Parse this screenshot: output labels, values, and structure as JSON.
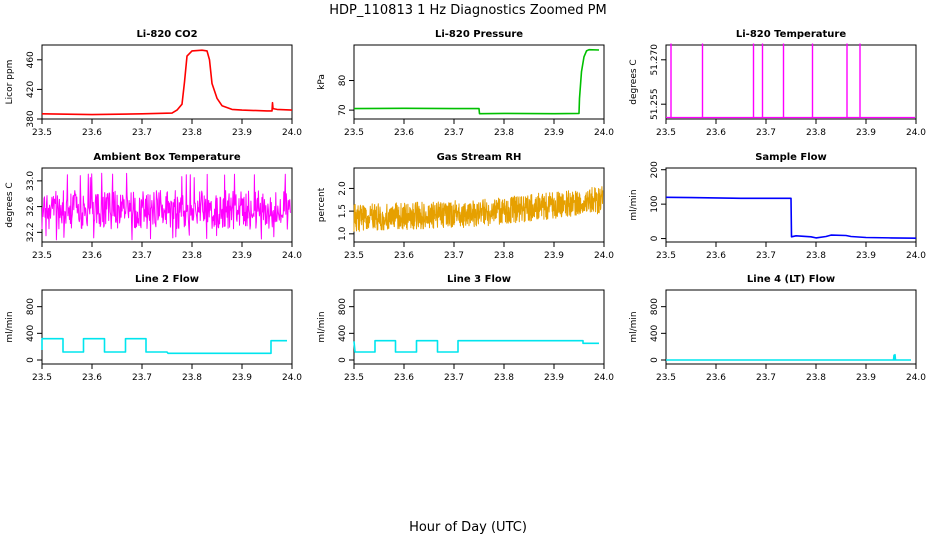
{
  "figure": {
    "title": "HDP_110813  1 Hz Diagnostics Zoomed PM",
    "xlabel": "Hour of Day (UTC)"
  },
  "chart_data": [
    {
      "type": "line",
      "title": "Li-820 CO2",
      "ylabel": "Licor ppm",
      "color": "#ff0000",
      "xlim": [
        23.5,
        24.0
      ],
      "ylim": [
        380,
        480
      ],
      "xticks": [
        "23.5",
        "23.6",
        "23.7",
        "23.8",
        "23.9",
        "24.0"
      ],
      "yticks": [
        "380",
        "420",
        "460"
      ],
      "series": [
        {
          "x": [
            23.5,
            23.6,
            23.7,
            23.76,
            23.77,
            23.78,
            23.785,
            23.79,
            23.8,
            23.82,
            23.83,
            23.835,
            23.84,
            23.85,
            23.86,
            23.88,
            23.9,
            23.95,
            23.96,
            23.961,
            23.962,
            23.97,
            24.0
          ],
          "y": [
            387,
            386,
            387,
            388,
            392,
            400,
            430,
            465,
            472,
            473,
            472,
            460,
            428,
            408,
            398,
            393,
            392,
            391,
            391,
            402,
            394,
            393,
            392
          ]
        }
      ]
    },
    {
      "type": "line",
      "title": "Li-820 Pressure",
      "ylabel": "kPa",
      "color": "#00c000",
      "xlim": [
        23.5,
        24.0
      ],
      "ylim": [
        67,
        92
      ],
      "xticks": [
        "23.5",
        "23.6",
        "23.7",
        "23.8",
        "23.9",
        "24.0"
      ],
      "yticks": [
        "70",
        "80"
      ],
      "series": [
        {
          "x": [
            23.5,
            23.6,
            23.7,
            23.75,
            23.751,
            23.8,
            23.9,
            23.95,
            23.951,
            23.955,
            23.96,
            23.965,
            23.97,
            23.99
          ],
          "y": [
            70.5,
            70.6,
            70.5,
            70.5,
            68.8,
            68.9,
            68.8,
            68.9,
            74,
            83,
            88,
            90,
            90.4,
            90.3
          ]
        }
      ]
    },
    {
      "type": "line",
      "title": "Li-820 Temperature",
      "ylabel": "degrees C",
      "color": "#ff00ff",
      "xlim": [
        23.5,
        24.0
      ],
      "ylim": [
        51.25,
        51.275
      ],
      "xticks": [
        "23.5",
        "23.6",
        "23.7",
        "23.8",
        "23.9",
        "24.0"
      ],
      "yticks": [
        "51.255",
        "51.270"
      ],
      "baseline": 51.2505,
      "spikes": [
        23.51,
        23.573,
        23.675,
        23.693,
        23.735,
        23.793,
        23.862,
        23.888
      ],
      "spike_top": 51.2755
    },
    {
      "type": "line",
      "title": "Ambient Box Temperature",
      "ylabel": "degrees C",
      "color": "#ff00ff",
      "xlim": [
        23.5,
        24.0
      ],
      "ylim": [
        32.05,
        33.2
      ],
      "xticks": [
        "23.5",
        "23.6",
        "23.7",
        "23.8",
        "23.9",
        "24.0"
      ],
      "yticks": [
        "32.2",
        "32.6",
        "33.0"
      ],
      "noise": {
        "low": 32.25,
        "high": 32.85,
        "spike_low": 32.08,
        "spike_high": 33.12,
        "points": 500
      }
    },
    {
      "type": "line",
      "title": "Gas Stream RH",
      "ylabel": "percent",
      "color": "#e6a000",
      "xlim": [
        23.5,
        24.0
      ],
      "ylim": [
        0.82,
        2.45
      ],
      "xticks": [
        "23.5",
        "23.6",
        "23.7",
        "23.8",
        "23.9",
        "24.0"
      ],
      "yticks": [
        "1.0",
        "1.5",
        "2.0"
      ],
      "noise": {
        "start": 1.35,
        "mid": 1.45,
        "end": 1.75,
        "amplitude": 0.3,
        "points": 900
      }
    },
    {
      "type": "line",
      "title": "Sample Flow",
      "ylabel": "ml/min",
      "color": "#0000ff",
      "xlim": [
        23.5,
        24.0
      ],
      "ylim": [
        -10,
        205
      ],
      "xticks": [
        "23.5",
        "23.6",
        "23.7",
        "23.8",
        "23.9",
        "24.0"
      ],
      "yticks": [
        "0",
        "100",
        "200"
      ],
      "series": [
        {
          "x": [
            23.5,
            23.55,
            23.6,
            23.65,
            23.7,
            23.75,
            23.751,
            23.76,
            23.79,
            23.8,
            23.82,
            23.83,
            23.86,
            23.87,
            23.9,
            23.95,
            24.0
          ],
          "y": [
            120,
            119,
            118,
            117,
            117,
            117,
            5,
            8,
            5,
            2,
            6,
            10,
            9,
            6,
            3,
            2,
            1
          ]
        }
      ]
    },
    {
      "type": "line",
      "title": "Line 2 Flow",
      "ylabel": "ml/min",
      "color": "#00e5ee",
      "xlim": [
        23.5,
        24.0
      ],
      "ylim": [
        -60,
        1050
      ],
      "xticks": [
        "23.5",
        "23.6",
        "23.7",
        "23.8",
        "23.9",
        "24.0"
      ],
      "yticks": [
        "0",
        "400",
        "800"
      ],
      "series": [
        {
          "x": [
            23.5,
            23.5,
            23.542,
            23.542,
            23.583,
            23.583,
            23.625,
            23.625,
            23.667,
            23.667,
            23.708,
            23.708,
            23.75,
            23.752,
            23.8,
            23.9,
            23.958,
            23.958,
            23.99
          ],
          "y": [
            150,
            320,
            320,
            120,
            120,
            320,
            320,
            120,
            120,
            320,
            320,
            120,
            120,
            100,
            100,
            100,
            100,
            290,
            290
          ]
        }
      ]
    },
    {
      "type": "line",
      "title": "Line 3 Flow",
      "ylabel": "ml/min",
      "color": "#00e5ee",
      "xlim": [
        23.5,
        24.0
      ],
      "ylim": [
        -60,
        1050
      ],
      "xticks": [
        "23.5",
        "23.6",
        "23.7",
        "23.8",
        "23.9",
        "24.0"
      ],
      "yticks": [
        "0",
        "400",
        "800"
      ],
      "series": [
        {
          "x": [
            23.5,
            23.5,
            23.502,
            23.502,
            23.542,
            23.542,
            23.583,
            23.583,
            23.625,
            23.625,
            23.667,
            23.667,
            23.708,
            23.708,
            23.8,
            23.9,
            23.958,
            23.958,
            23.99
          ],
          "y": [
            280,
            280,
            120,
            120,
            120,
            290,
            290,
            120,
            120,
            290,
            290,
            120,
            120,
            290,
            290,
            290,
            290,
            250,
            250
          ]
        }
      ]
    },
    {
      "type": "line",
      "title": "Line 4 (LT) Flow",
      "ylabel": "ml/min",
      "color": "#00e5ee",
      "xlim": [
        23.5,
        24.0
      ],
      "ylim": [
        -60,
        1050
      ],
      "xticks": [
        "23.5",
        "23.6",
        "23.7",
        "23.8",
        "23.9",
        "24.0"
      ],
      "yticks": [
        "0",
        "400",
        "800"
      ],
      "series": [
        {
          "x": [
            23.5,
            23.7,
            23.9,
            23.955,
            23.956,
            23.957,
            23.958,
            23.959,
            23.99
          ],
          "y": [
            0,
            0,
            0,
            0,
            70,
            0,
            80,
            0,
            0
          ]
        }
      ]
    }
  ]
}
